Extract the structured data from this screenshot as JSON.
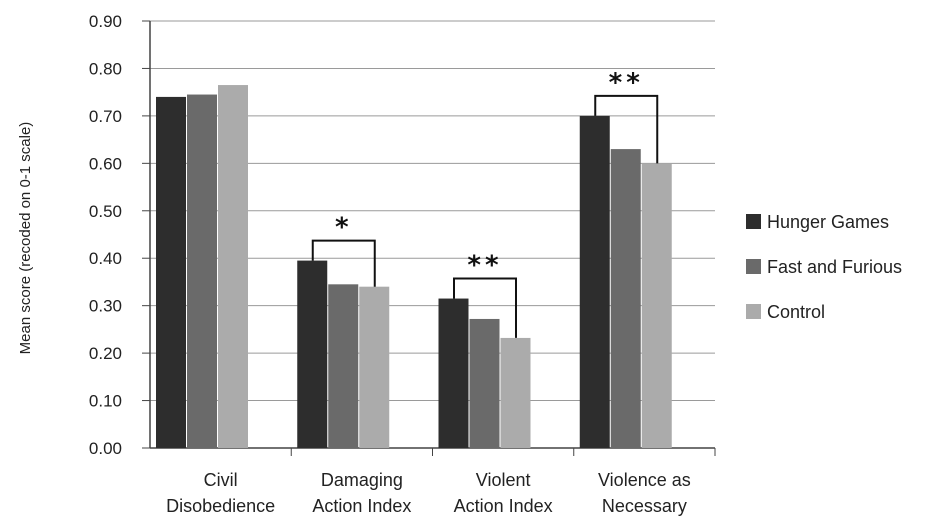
{
  "chart_data": {
    "type": "bar",
    "title": "",
    "xlabel": "",
    "ylabel": "Mean score (recoded on 0-1 scale)",
    "ylim": [
      0,
      0.9
    ],
    "yticks": [
      "0.00",
      "0.10",
      "0.20",
      "0.30",
      "0.40",
      "0.50",
      "0.60",
      "0.70",
      "0.80",
      "0.90"
    ],
    "grid": true,
    "legend_position": "right",
    "categories": [
      [
        "Civil",
        "Disobedience"
      ],
      [
        "Damaging",
        "Action Index"
      ],
      [
        "Violent",
        "Action Index"
      ],
      [
        "Violence as",
        "Necessary"
      ]
    ],
    "series": [
      {
        "name": "Hunger Games",
        "color": "#2d2d2d",
        "values": [
          0.74,
          0.395,
          0.315,
          0.7
        ]
      },
      {
        "name": "Fast and Furious",
        "color": "#6a6a6a",
        "values": [
          0.745,
          0.345,
          0.272,
          0.63
        ]
      },
      {
        "name": "Control",
        "color": "#ababab",
        "values": [
          0.765,
          0.34,
          0.232,
          0.6
        ]
      }
    ],
    "significance": [
      {
        "category_index": 1,
        "label": "*"
      },
      {
        "category_index": 2,
        "label": "**"
      },
      {
        "category_index": 3,
        "label": "**"
      }
    ]
  }
}
